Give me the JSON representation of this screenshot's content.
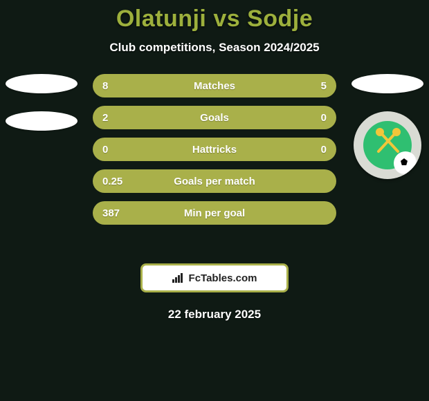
{
  "background_color": "#0f1a14",
  "header": {
    "title": "Olatunji vs Sodje",
    "title_color": "#9db03c",
    "title_fontsize": 34,
    "subtitle": "Club competitions, Season 2024/2025",
    "subtitle_color": "#ffffff",
    "subtitle_fontsize": 17
  },
  "players": {
    "left": {
      "name": "Olatunji",
      "badge_shape": "oval",
      "badge_color": "#ffffff",
      "secondary_badge_shape": "oval",
      "secondary_badge_color": "#ffffff"
    },
    "right": {
      "name": "Sodje",
      "badge_shape": "oval",
      "badge_color": "#ffffff",
      "club_crest": {
        "ring_color": "#d9dbd4",
        "inner_color": "#2fbf71",
        "accent_color": "#f2c63a",
        "ball_color": "#ffffff"
      }
    }
  },
  "stats": {
    "row_style": {
      "bg_color": "#a9b04a",
      "text_color": "#ffffff",
      "height": 34,
      "radius": 17,
      "fontsize": 15
    },
    "rows": [
      {
        "left": "8",
        "label": "Matches",
        "right": "5"
      },
      {
        "left": "2",
        "label": "Goals",
        "right": "0"
      },
      {
        "left": "0",
        "label": "Hattricks",
        "right": "0"
      },
      {
        "left": "0.25",
        "label": "Goals per match",
        "right": ""
      },
      {
        "left": "387",
        "label": "Min per goal",
        "right": ""
      }
    ]
  },
  "brand": {
    "text": "FcTables.com",
    "border_color": "#a9b04a",
    "bg_color": "#ffffff",
    "text_color": "#222222",
    "icon_color": "#222222"
  },
  "footer": {
    "date": "22 february 2025",
    "color": "#ffffff",
    "fontsize": 17
  }
}
